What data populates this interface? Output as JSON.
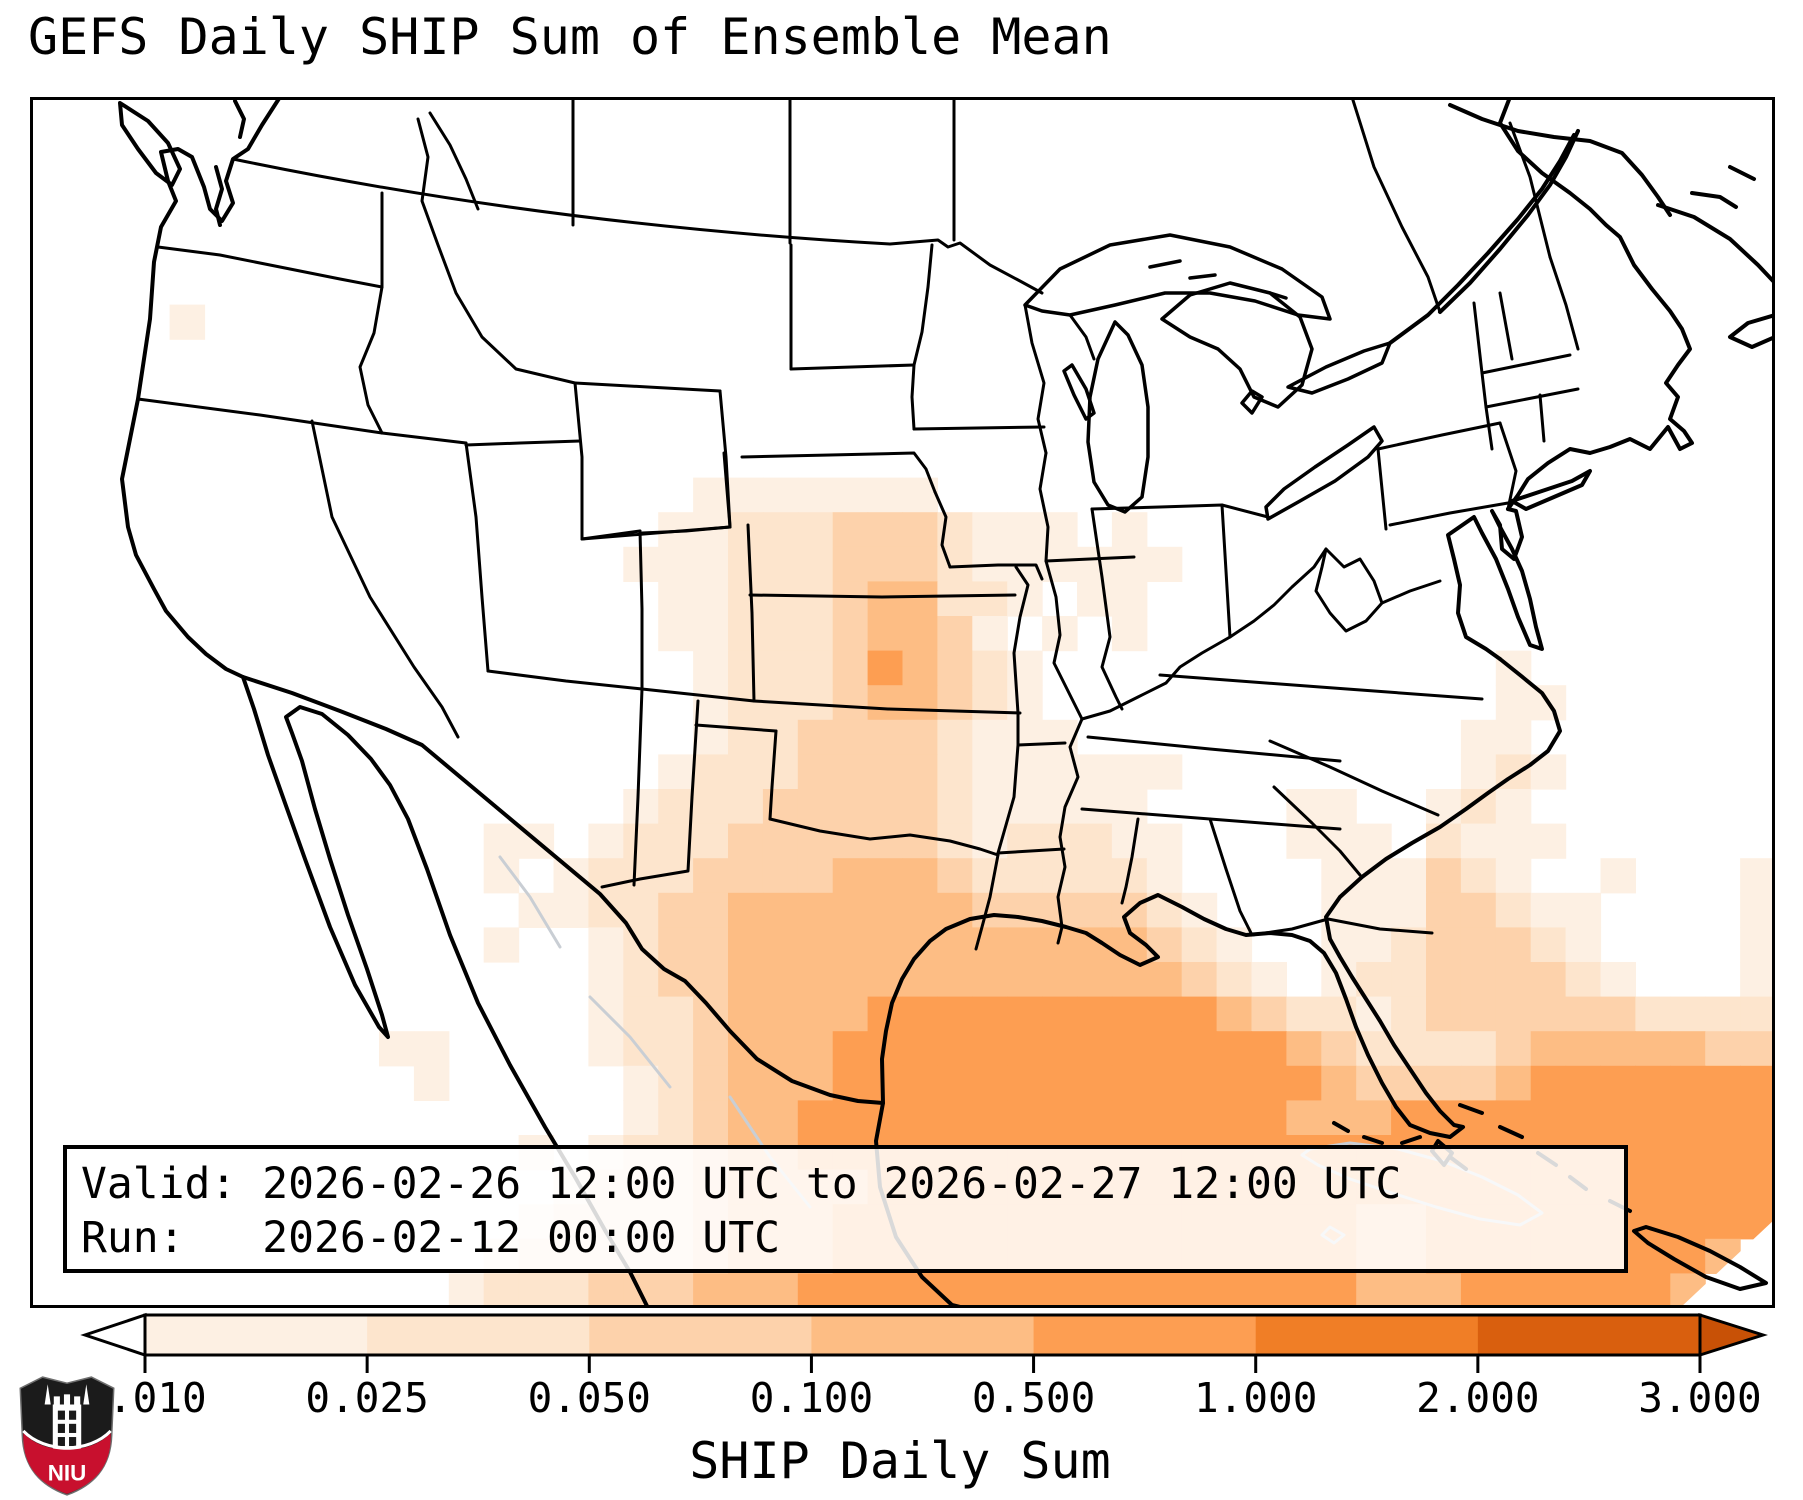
{
  "title": "GEFS Daily SHIP Sum of Ensemble Mean",
  "annotation_box": {
    "valid_line": "Valid: 2026-02-26 12:00 UTC to 2026-02-27 12:00 UTC",
    "run_line": "Run:   2026-02-12 00:00 UTC"
  },
  "colorbar": {
    "label": "SHIP Daily Sum",
    "tick_labels": [
      "0.010",
      "0.025",
      "0.050",
      "0.100",
      "0.500",
      "1.000",
      "2.000",
      "3.000"
    ],
    "segment_colors": [
      "#fdf0e3",
      "#fde5cd",
      "#fdd2ab",
      "#fdbd84",
      "#fd9e52",
      "#f07e26",
      "#d95f0e"
    ],
    "under_arrow_color": "#ffffff",
    "over_arrow_color": "#c85106",
    "outline_color": "#000000"
  },
  "logo": {
    "text": "NIU",
    "shield_color": "#1b1b1b",
    "band_color": "#c8102e"
  },
  "chart_data": {
    "type": "heatmap",
    "title": "GEFS Daily SHIP Sum of Ensemble Mean",
    "colorbar_label": "SHIP Daily Sum",
    "valid": "2026-02-26 12:00 UTC to 2026-02-27 12:00 UTC",
    "run": "2026-02-12 00:00 UTC",
    "levels": [
      0.01,
      0.025,
      0.05,
      0.1,
      0.5,
      1.0,
      2.0,
      3.0
    ],
    "palette": [
      "#ffffff",
      "#fdf0e3",
      "#fde5cd",
      "#fdd2ab",
      "#fdbd84",
      "#fd9e52",
      "#f07e26",
      "#d95f0e"
    ],
    "grid": {
      "cols": 50,
      "rows": 35,
      "cell_values": "one digit per cell, index into palette; 0 = below 0.010",
      "rows_data": [
        "00000000000000000000000000000000000000000000000000",
        "00000000000000000000000000000000000000000000000000",
        "00000000000000000000000000000000000000000000000000",
        "00000000000000000000000000000000000000000000000000",
        "00000000000000000000000000000000000000000000000000",
        "00000000000000000000000000000000000000000000000000",
        "00001000000000000000000000000000000000000000000000",
        "00000000000000000000000000000000000000000000000000",
        "00000000000000000000000000000000000000000000000000",
        "00000000000000000000000000000000000000000000000000",
        "00000000000000000000000000000000000000000000000000",
        "00000000000000000001111111000000000000000000000000",
        "00000000000000000011222333211101000000000000000000",
        "00000000000000000111222333211111100000000000000000",
        "00000000000000000011222344221011000000000000000000",
        "00000000000000000011222344310101000000000000000000",
        "00000000000000000001222354321000000000000010000000",
        "00000000000000000001222344321000000000000011000000",
        "00000000000000000001223333211100000000000110000000",
        "00000000000000000012223333211111100000000121000000",
        "00000000000000000122233333211111000011001210000000",
        "00000000000001101222333333212221100011102111000000",
        "00000000000001012223333444322222100001113210010001",
        "00000000000000112233444444433333210001113321100001",
        "00000000000001001233444444444444321001123332100001",
        "00000000000000001233444444444444432101223333210001",
        "00000000000000001223444455555555554322123333332222",
        "00000000001100001223444555555555555543222234444433",
        "00000000000100000123444555555555555554333345555555",
        "00000000000000000123445555555555555544455555555555",
        "00000000000000101223445555555555555555555555555555",
        "00000000000000012223444455555555555555555555555555",
        "00000000000000122223444555555555555555445555555555",
        "00000000000001222223444555555555555555445555555540",
        "00000000000012223334445555555555555555444555555400"
      ]
    }
  }
}
